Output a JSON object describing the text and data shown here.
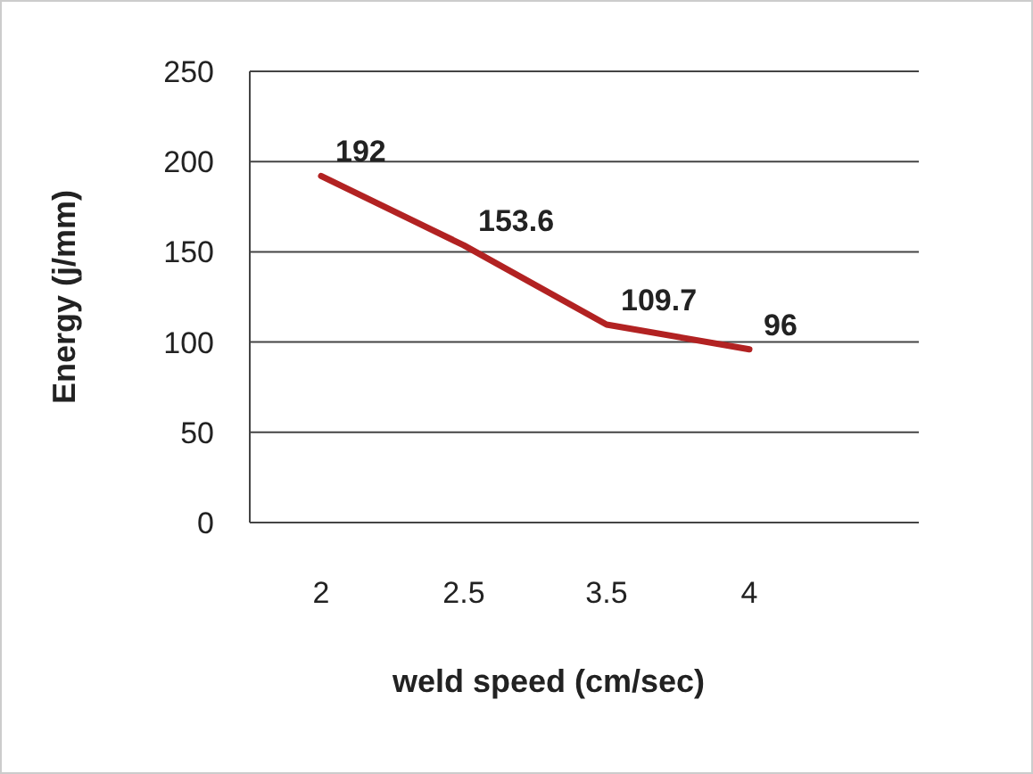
{
  "chart_data": {
    "type": "line",
    "xlabel": "weld speed (cm/sec)",
    "ylabel": "Energy (j/mm)",
    "categories": [
      "2",
      "2.5",
      "3.5",
      "4"
    ],
    "series": [
      {
        "color": "#b22222",
        "values": [
          192,
          153.6,
          109.7,
          96
        ]
      }
    ],
    "ylim": [
      0,
      250
    ],
    "yticks": [
      0,
      50,
      100,
      150,
      200,
      250
    ],
    "grid": "y",
    "data_labels": true,
    "marker": "none",
    "line_style": "solid"
  }
}
